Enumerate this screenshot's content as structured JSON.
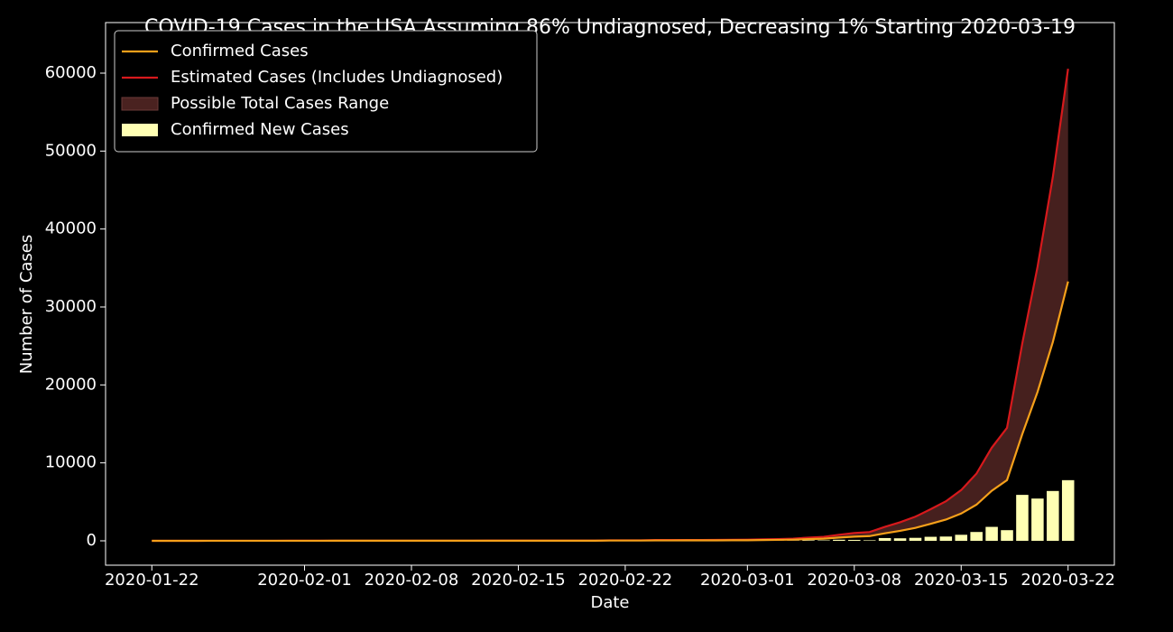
{
  "chart_data": {
    "type": "line",
    "title": "COVID-19 Cases in the USA Assuming 86% Undiagnosed, Decreasing 1% Starting 2020-03-19",
    "x_label": "Date",
    "y_label": "Number of Cases",
    "x": [
      "2020-01-22",
      "2020-01-23",
      "2020-01-24",
      "2020-01-25",
      "2020-01-26",
      "2020-01-27",
      "2020-01-28",
      "2020-01-29",
      "2020-01-30",
      "2020-01-31",
      "2020-02-01",
      "2020-02-02",
      "2020-02-03",
      "2020-02-04",
      "2020-02-05",
      "2020-02-06",
      "2020-02-07",
      "2020-02-08",
      "2020-02-09",
      "2020-02-10",
      "2020-02-11",
      "2020-02-12",
      "2020-02-13",
      "2020-02-14",
      "2020-02-15",
      "2020-02-16",
      "2020-02-17",
      "2020-02-18",
      "2020-02-19",
      "2020-02-20",
      "2020-02-21",
      "2020-02-22",
      "2020-02-23",
      "2020-02-24",
      "2020-02-25",
      "2020-02-26",
      "2020-02-27",
      "2020-02-28",
      "2020-02-29",
      "2020-03-01",
      "2020-03-02",
      "2020-03-03",
      "2020-03-04",
      "2020-03-05",
      "2020-03-06",
      "2020-03-07",
      "2020-03-08",
      "2020-03-09",
      "2020-03-10",
      "2020-03-11",
      "2020-03-12",
      "2020-03-13",
      "2020-03-14",
      "2020-03-15",
      "2020-03-16",
      "2020-03-17",
      "2020-03-18",
      "2020-03-19",
      "2020-03-20",
      "2020-03-21",
      "2020-03-22"
    ],
    "series": [
      {
        "name": "Confirmed Cases",
        "color": "#f5a01a",
        "values": [
          1,
          1,
          2,
          2,
          5,
          5,
          5,
          5,
          5,
          6,
          8,
          8,
          11,
          11,
          11,
          12,
          12,
          12,
          12,
          12,
          13,
          13,
          14,
          14,
          14,
          14,
          14,
          14,
          14,
          14,
          35,
          35,
          35,
          53,
          53,
          59,
          60,
          62,
          70,
          76,
          101,
          122,
          153,
          221,
          278,
          417,
          537,
          605,
          959,
          1281,
          1663,
          2179,
          2726,
          3499,
          4632,
          6421,
          7786,
          13680,
          19101,
          25493,
          33272
        ]
      },
      {
        "name": "Estimated Cases (Includes Undiagnosed)",
        "color": "#d7191c",
        "values": [
          1.86,
          1.86,
          3.72,
          3.72,
          9.3,
          9.3,
          9.3,
          9.3,
          9.3,
          11.16,
          14.88,
          14.88,
          20.46,
          20.46,
          20.46,
          22.32,
          22.32,
          22.32,
          22.32,
          22.32,
          24.18,
          24.18,
          26.04,
          26.04,
          26.04,
          26.04,
          26.04,
          26.04,
          26.04,
          26.04,
          65.1,
          65.1,
          65.1,
          98.58,
          98.58,
          109.74,
          111.6,
          115.32,
          130.2,
          141.36,
          187.86,
          226.92,
          284.58,
          411.06,
          517.08,
          775.62,
          998.82,
          1125.3,
          1783.74,
          2382.66,
          3093.18,
          4052.94,
          5070.36,
          6508.14,
          8615.52,
          11943.06,
          14481.96,
          25308,
          35145.84,
          46652.19,
          60555.04
        ]
      },
      {
        "name": "Confirmed New Cases",
        "color": "#ffffb3",
        "kind": "bar",
        "values": [
          null,
          0,
          1,
          0,
          3,
          0,
          0,
          0,
          0,
          1,
          2,
          0,
          3,
          0,
          0,
          1,
          0,
          0,
          0,
          0,
          1,
          0,
          1,
          0,
          0,
          0,
          0,
          0,
          0,
          0,
          21,
          0,
          0,
          18,
          0,
          6,
          1,
          2,
          8,
          6,
          25,
          21,
          31,
          68,
          57,
          139,
          120,
          68,
          354,
          322,
          382,
          516,
          547,
          773,
          1133,
          1789,
          1365,
          5894,
          5421,
          6392,
          7779
        ]
      }
    ],
    "range": {
      "name": "Possible Total Cases Range",
      "color": "#4a2220"
    },
    "ylim": [
      -3127,
      66486
    ],
    "yticks": [
      0,
      10000,
      20000,
      30000,
      40000,
      50000,
      60000
    ],
    "xticks": [
      "2020-01-22",
      "2020-02-01",
      "2020-02-08",
      "2020-02-15",
      "2020-02-22",
      "2020-03-01",
      "2020-03-08",
      "2020-03-15",
      "2020-03-22"
    ],
    "legend": "upper-left",
    "background": "#000000"
  }
}
